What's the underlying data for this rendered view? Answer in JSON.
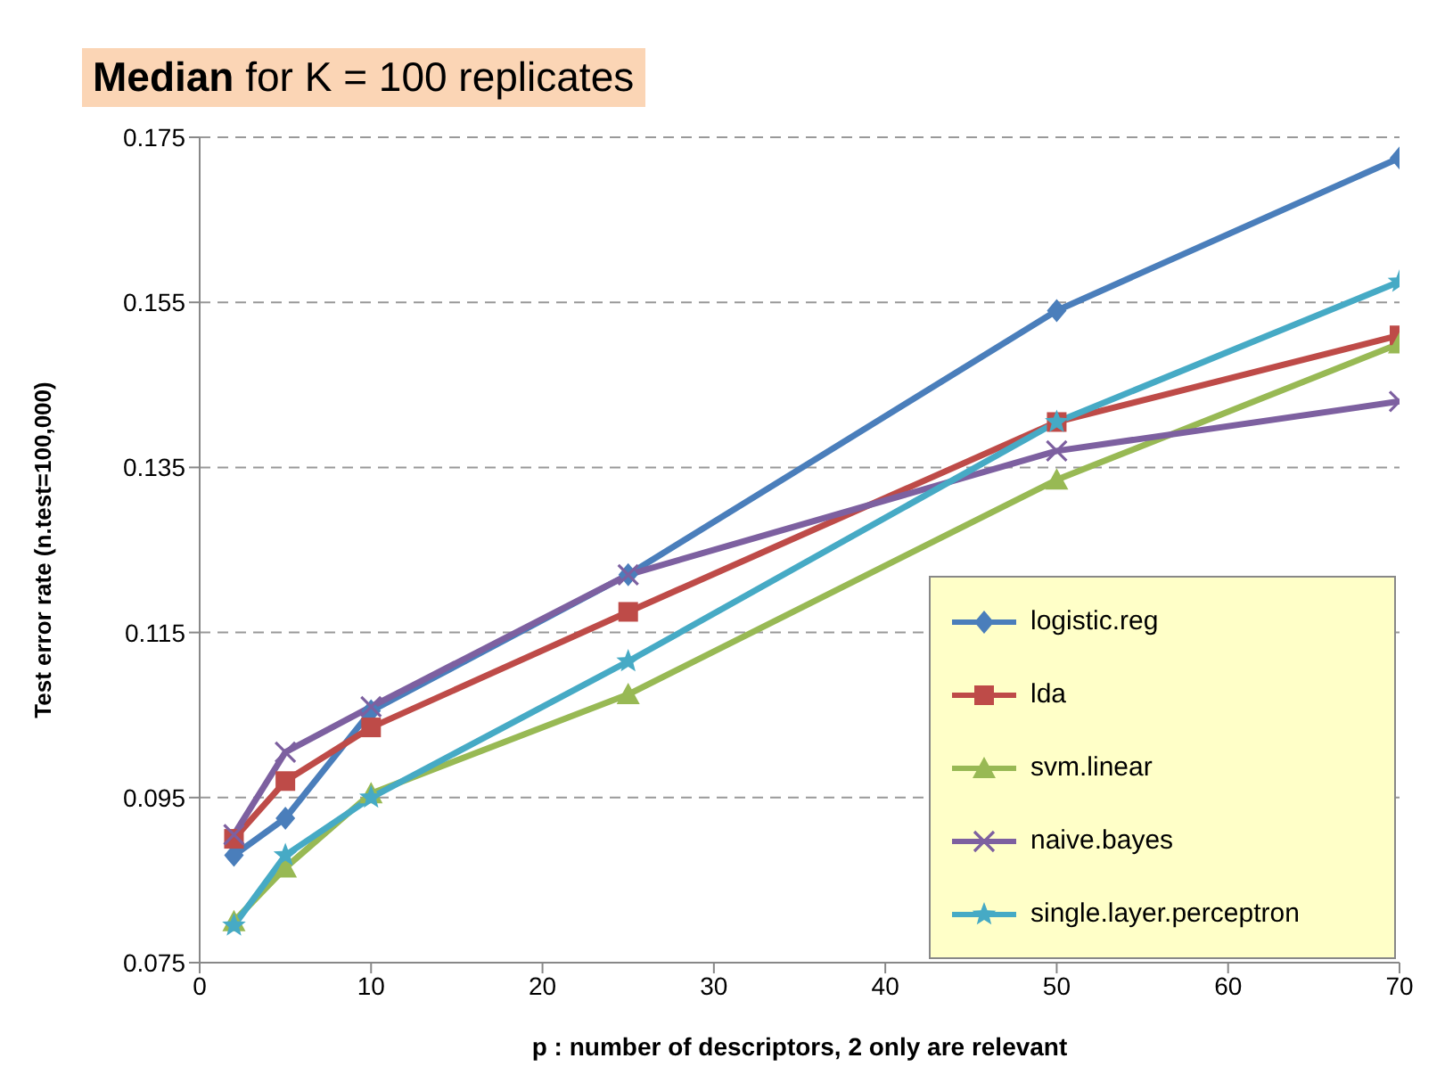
{
  "chart_data": {
    "type": "line",
    "title": "Median for K = 100 replicates",
    "xlabel": "p : number of descriptors, 2 only are relevant",
    "ylabel": "Test error rate (n.test=100,000)",
    "x": [
      2,
      5,
      10,
      25,
      50,
      70
    ],
    "series": [
      {
        "name": "logistic.reg",
        "color": "#4a7ebb",
        "marker": "diamond",
        "values": [
          0.088,
          0.0925,
          0.1055,
          0.122,
          0.154,
          0.1725
        ]
      },
      {
        "name": "lda",
        "color": "#be4b48",
        "marker": "square",
        "values": [
          0.09,
          0.097,
          0.1035,
          0.1175,
          0.1405,
          0.151
        ]
      },
      {
        "name": "svm.linear",
        "color": "#98b954",
        "marker": "triangle",
        "values": [
          0.08,
          0.0865,
          0.0955,
          0.1075,
          0.1335,
          0.15
        ]
      },
      {
        "name": "naive.bayes",
        "color": "#7d60a0",
        "marker": "cross",
        "values": [
          0.0905,
          0.1005,
          0.106,
          0.122,
          0.137,
          0.143
        ]
      },
      {
        "name": "single.layer.perceptron",
        "color": "#46aac5",
        "marker": "star",
        "values": [
          0.0795,
          0.088,
          0.095,
          0.1115,
          0.1405,
          0.1575
        ]
      }
    ],
    "xlim": [
      0,
      70
    ],
    "xticks": [
      0,
      10,
      20,
      30,
      40,
      50,
      60,
      70
    ],
    "ylim": [
      0.075,
      0.175
    ],
    "yticks": [
      0.075,
      0.095,
      0.115,
      0.135,
      0.155,
      0.175
    ],
    "grid": "y",
    "legend": "bottom right"
  }
}
